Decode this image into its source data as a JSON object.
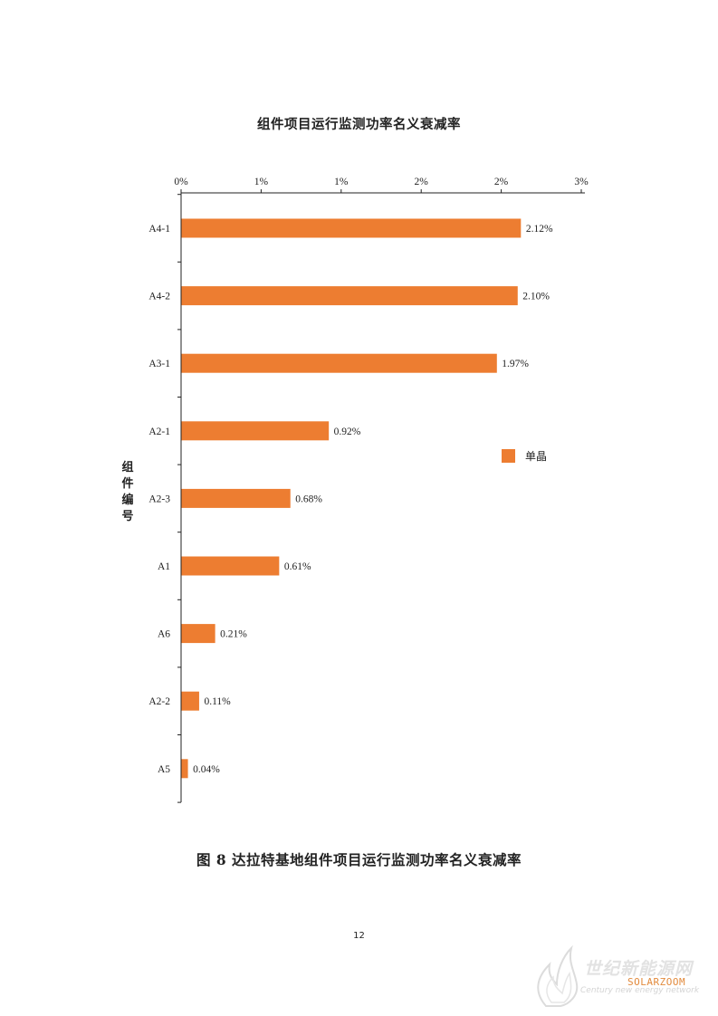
{
  "chart_data": {
    "type": "bar",
    "orientation": "horizontal",
    "title": "组件项目运行监测功率名义衰减率",
    "ylabel": "组件编号",
    "xlabel": "",
    "x_tick_labels": [
      "0%",
      "1%",
      "1%",
      "2%",
      "2%",
      "3%"
    ],
    "x_ticks": [
      0,
      0.5,
      1.0,
      1.5,
      2.0,
      2.5
    ],
    "xlim": [
      0,
      2.5
    ],
    "categories": [
      "A4-1",
      "A4-2",
      "A3-1",
      "A2-1",
      "A2-3",
      "A1",
      "A6",
      "A2-2",
      "A5"
    ],
    "series": [
      {
        "name": "单晶",
        "color": "#ED7D31",
        "values": [
          2.12,
          2.1,
          1.97,
          0.92,
          0.68,
          0.61,
          0.21,
          0.11,
          0.04
        ],
        "labels": [
          "2.12%",
          "2.10%",
          "1.97%",
          "0.92%",
          "0.68%",
          "0.61%",
          "0.21%",
          "0.11%",
          "0.04%"
        ]
      }
    ],
    "legend_position": "right",
    "grid": false
  },
  "caption": "图 8  达拉特基地组件项目运行监测功率名义衰减率",
  "page_number": "12",
  "watermark": {
    "cn_text": "世纪新能源网",
    "en_text": "Century new energy network",
    "brand": "SOLARZOOM",
    "icon": "flame-logo-icon"
  }
}
